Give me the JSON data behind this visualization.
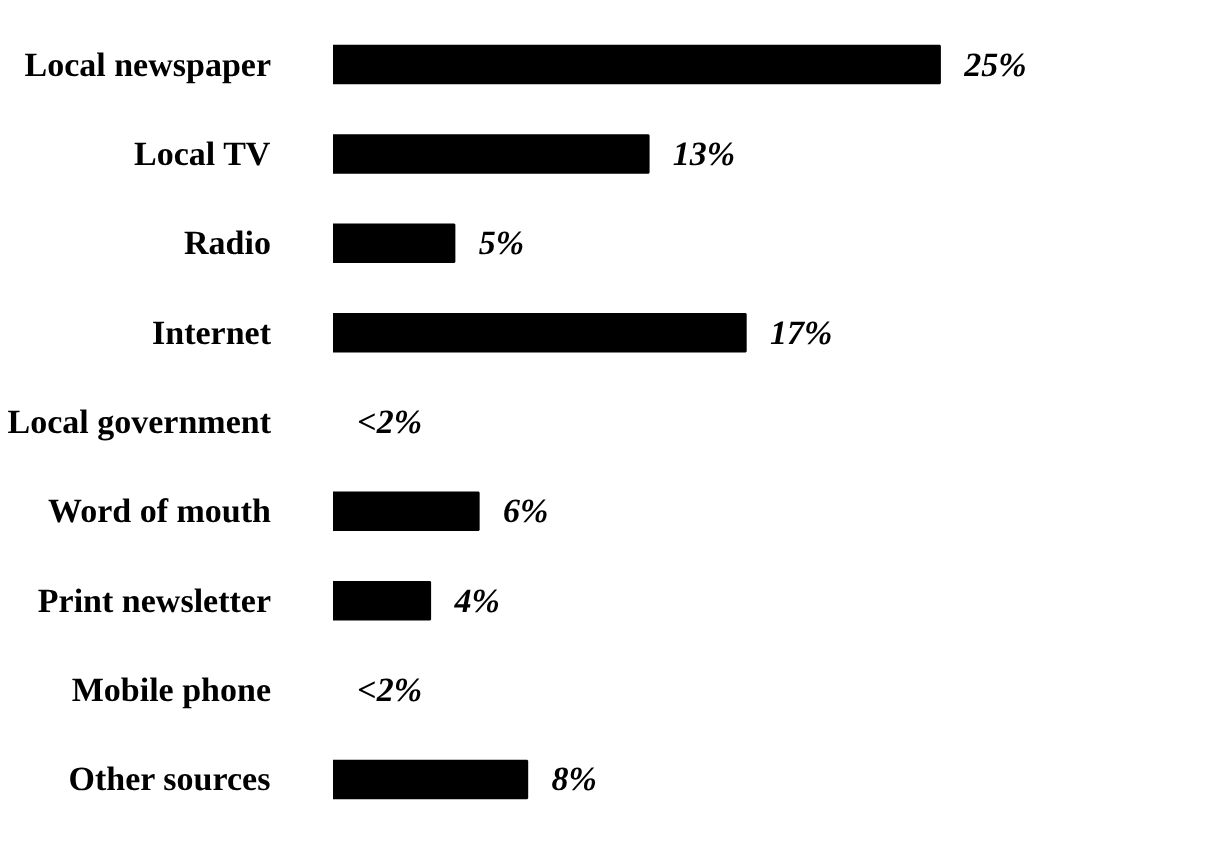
{
  "chart_data": {
    "type": "bar",
    "orientation": "horizontal",
    "categories": [
      "Local newspaper",
      "Local TV",
      "Radio",
      "Internet",
      "Local government",
      "Word of mouth",
      "Print newsletter",
      "Mobile phone",
      "Other sources"
    ],
    "values": [
      25,
      13,
      5,
      17,
      null,
      6,
      4,
      null,
      8
    ],
    "value_labels": [
      "25%",
      "13%",
      "5%",
      "17%",
      "<2%",
      "6%",
      "4%",
      "<2%",
      "8%"
    ],
    "color": "#000000"
  }
}
